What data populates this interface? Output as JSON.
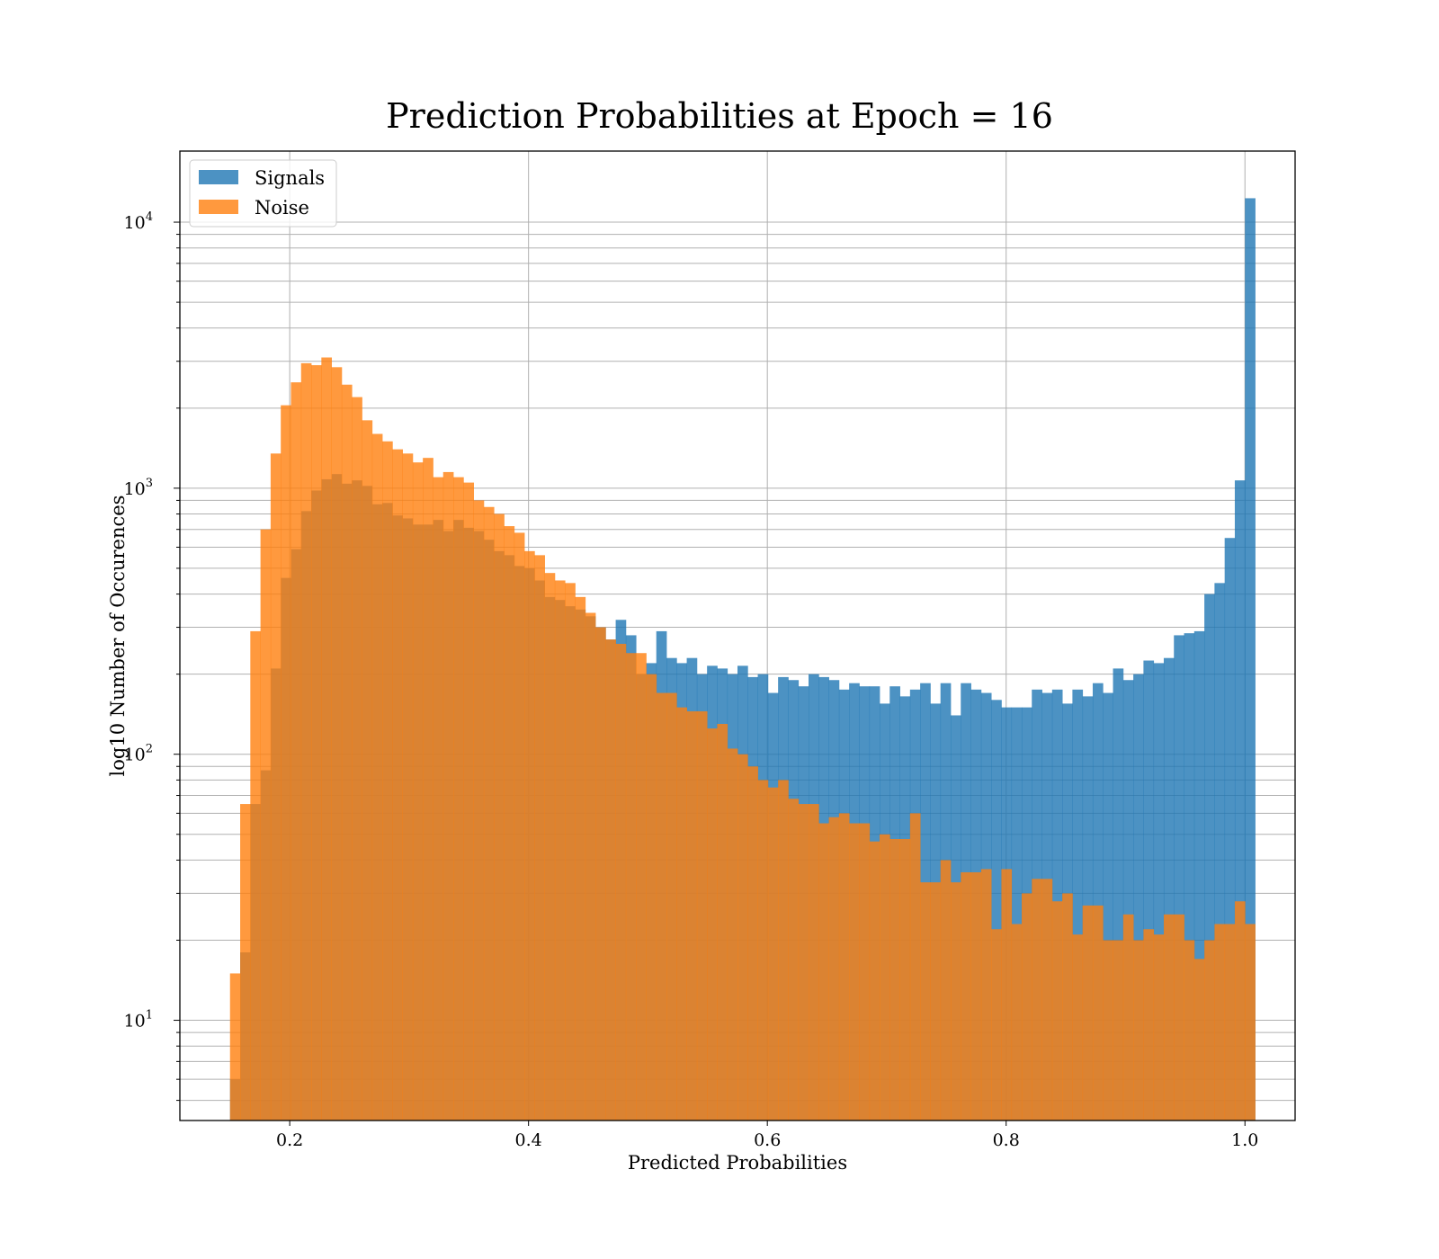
{
  "chart_data": {
    "type": "histogram",
    "title": "Prediction Probabilities at Epoch = 16",
    "xlabel": "Predicted Probabilities",
    "ylabel": "log10 Number of Occurences",
    "xscale": "linear",
    "yscale": "log",
    "xlim": [
      0.108,
      1.042
    ],
    "ylim": [
      4.2,
      18500
    ],
    "grid": true,
    "legend_position": "upper left",
    "xticks": [
      0.2,
      0.4,
      0.6,
      0.8,
      1.0
    ],
    "xtick_labels": [
      "0.2",
      "0.4",
      "0.6",
      "0.8",
      "1.0"
    ],
    "yticks": [
      10,
      100,
      1000,
      10000
    ],
    "ytick_labels": [
      {
        "base": "10",
        "exp": "1"
      },
      {
        "base": "10",
        "exp": "2"
      },
      {
        "base": "10",
        "exp": "3"
      },
      {
        "base": "10",
        "exp": "4"
      }
    ],
    "series": [
      {
        "name": "Signals",
        "color": "#1f77b4",
        "opacity": 0.8,
        "bin_start": 0.15,
        "bin_width": 0.0085,
        "values": [
          6,
          18,
          65,
          87,
          210,
          460,
          590,
          820,
          980,
          1080,
          1130,
          1040,
          1070,
          1020,
          870,
          880,
          790,
          770,
          730,
          730,
          760,
          690,
          760,
          710,
          690,
          640,
          580,
          560,
          510,
          500,
          450,
          390,
          380,
          360,
          350,
          330,
          300,
          270,
          320,
          280,
          200,
          220,
          290,
          230,
          220,
          230,
          200,
          215,
          210,
          200,
          215,
          195,
          200,
          170,
          195,
          190,
          180,
          200,
          195,
          190,
          175,
          185,
          180,
          180,
          155,
          180,
          165,
          175,
          185,
          155,
          185,
          140,
          185,
          175,
          170,
          160,
          150,
          150,
          150,
          175,
          170,
          175,
          155,
          175,
          165,
          185,
          170,
          210,
          190,
          200,
          225,
          220,
          230,
          280,
          285,
          290,
          400,
          440,
          650,
          1070,
          12300
        ]
      },
      {
        "name": "Noise",
        "color": "#ff7f0e",
        "opacity": 0.8,
        "bin_start": 0.15,
        "bin_width": 0.0085,
        "values": [
          15,
          65,
          290,
          700,
          1350,
          2050,
          2500,
          2950,
          2900,
          3100,
          2850,
          2450,
          2200,
          1800,
          1600,
          1500,
          1400,
          1350,
          1250,
          1300,
          1100,
          1150,
          1100,
          1050,
          900,
          850,
          800,
          720,
          680,
          580,
          560,
          480,
          450,
          440,
          390,
          340,
          300,
          270,
          260,
          240,
          240,
          200,
          170,
          170,
          150,
          145,
          145,
          125,
          130,
          105,
          100,
          90,
          80,
          75,
          80,
          68,
          65,
          65,
          55,
          58,
          60,
          55,
          55,
          47,
          50,
          48,
          48,
          60,
          33,
          33,
          40,
          33,
          36,
          36,
          37,
          22,
          37,
          23,
          30,
          34,
          34,
          28,
          30,
          21,
          27,
          27,
          20,
          20,
          25,
          20,
          22,
          21,
          25,
          25,
          20,
          17,
          20,
          23,
          23,
          28,
          23
        ]
      }
    ]
  }
}
